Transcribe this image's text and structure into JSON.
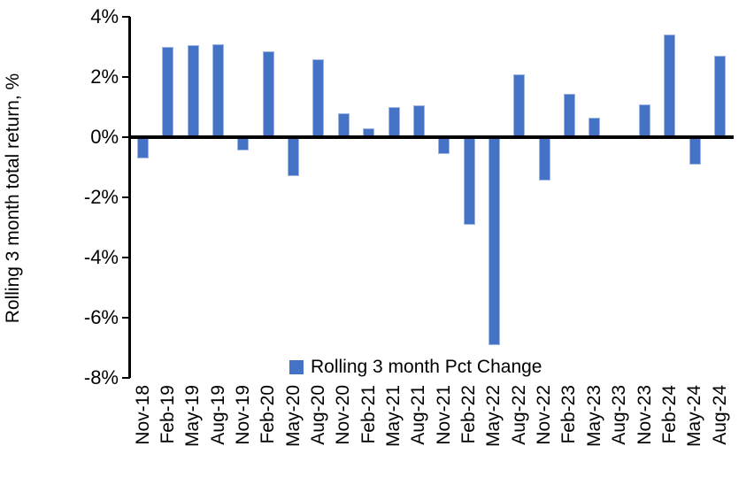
{
  "chart_data": {
    "type": "bar",
    "title": "",
    "xlabel": "",
    "ylabel": "Rolling 3 month total return, %",
    "ylim": [
      -8,
      4
    ],
    "ytick_step": 2,
    "grid": false,
    "legend_position": "bottom-center",
    "legend": [
      {
        "label": "Rolling 3 month Pct Change",
        "color": "#4472c4"
      }
    ],
    "yticks": [
      {
        "value": 4,
        "label": "4%"
      },
      {
        "value": 2,
        "label": "2%"
      },
      {
        "value": 0,
        "label": "0%"
      },
      {
        "value": -2,
        "label": "-2%"
      },
      {
        "value": -4,
        "label": "-4%"
      },
      {
        "value": -6,
        "label": "-6%"
      },
      {
        "value": -8,
        "label": "-8%"
      }
    ],
    "categories": [
      "Nov-18",
      "Feb-19",
      "May-19",
      "Aug-19",
      "Nov-19",
      "Feb-20",
      "May-20",
      "Aug-20",
      "Nov-20",
      "Feb-21",
      "May-21",
      "Aug-21",
      "Nov-21",
      "Feb-22",
      "May-22",
      "Aug-22",
      "Nov-22",
      "Feb-23",
      "May-23",
      "Aug-23",
      "Nov-23",
      "Feb-24",
      "May-24",
      "Aug-24"
    ],
    "values": [
      -0.7,
      3.0,
      3.05,
      3.1,
      -0.45,
      2.85,
      -1.3,
      2.6,
      0.8,
      0.3,
      1.0,
      1.05,
      -0.55,
      -2.9,
      -6.9,
      2.1,
      -1.45,
      1.45,
      0.65,
      0.0,
      1.1,
      3.4,
      -0.9,
      2.7
    ],
    "colors": {
      "bar_fill": "#4472c4",
      "bar_edge": "#9db6e4",
      "axis": "#000000",
      "text": "#000000",
      "background": "#ffffff"
    }
  }
}
